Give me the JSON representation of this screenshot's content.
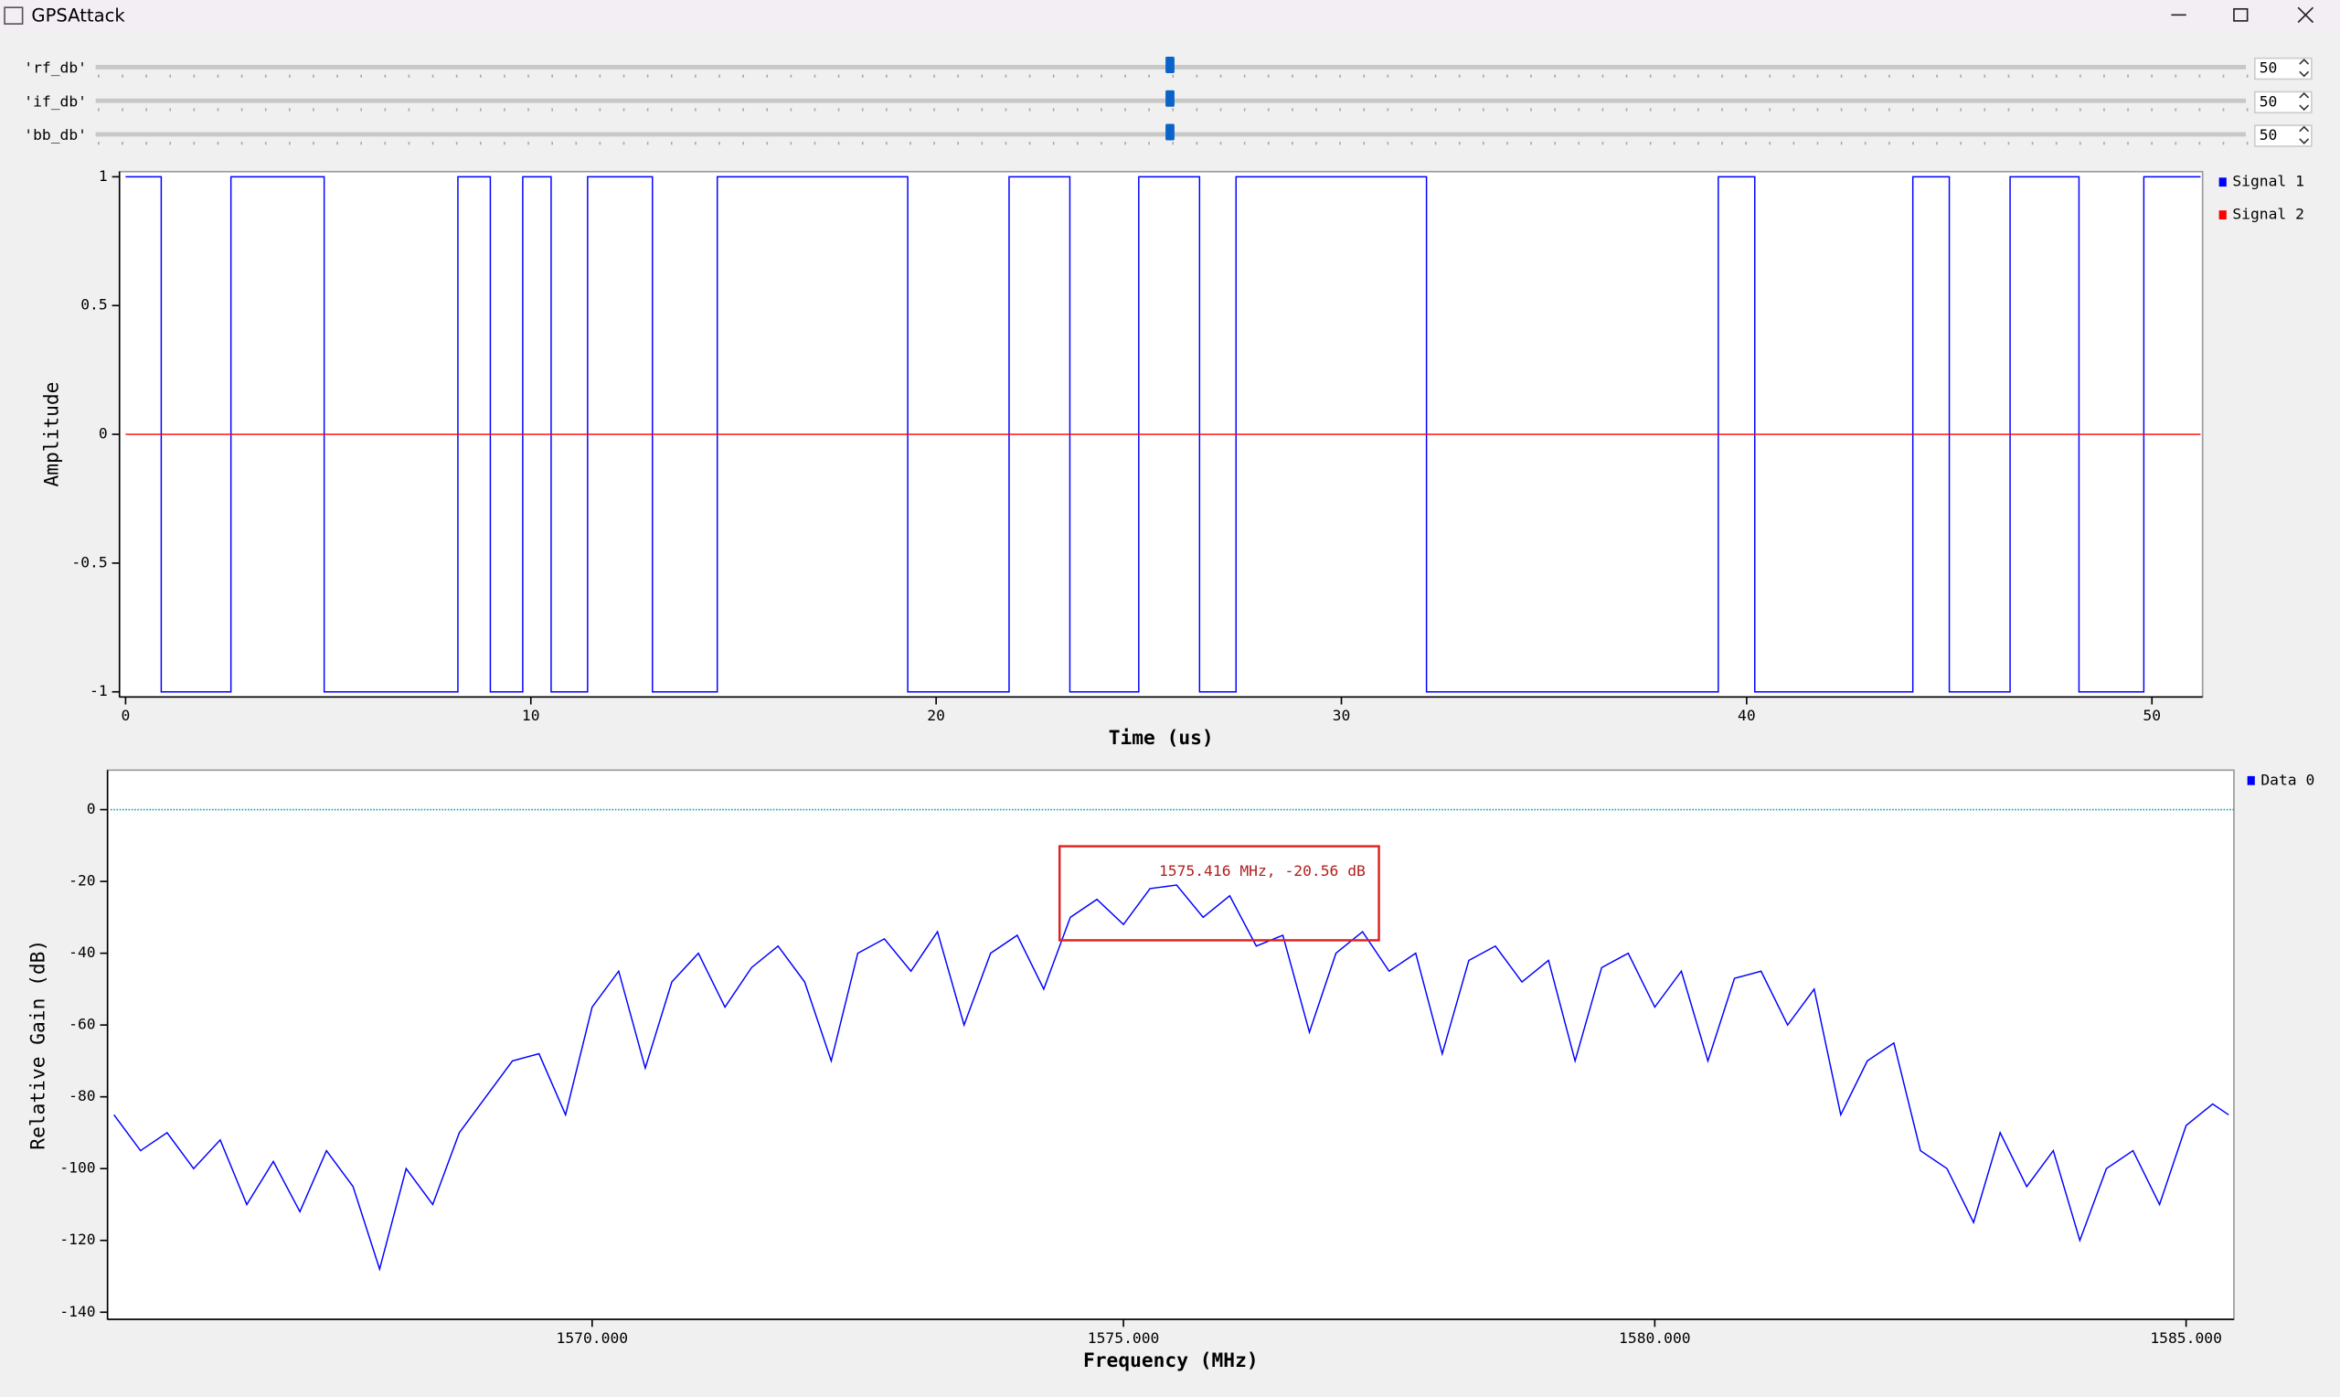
{
  "window": {
    "title": "GPSAttack"
  },
  "controls": [
    {
      "label": "'rf_db'",
      "value": 50
    },
    {
      "label": "'if_db'",
      "value": 50
    },
    {
      "label": "'bb_db'",
      "value": 50
    }
  ],
  "chart_data": [
    {
      "type": "line",
      "xlabel": "Time (us)",
      "ylabel": "Amplitude",
      "xlim": [
        -0.15,
        51.25
      ],
      "ylim": [
        -1.02,
        1.02
      ],
      "xticks": [
        0,
        10,
        20,
        30,
        40,
        50
      ],
      "yticks": [
        -1,
        -0.5,
        0,
        0.5,
        1
      ],
      "legend": "right",
      "series": [
        {
          "name": "Signal 1",
          "color": "#0000ff",
          "x": [
            0,
            0.88,
            0.88,
            2.6,
            2.6,
            4.9,
            4.9,
            8.2,
            8.2,
            9,
            9,
            9.8,
            9.8,
            10.5,
            10.5,
            11.4,
            11.4,
            13,
            13,
            14.6,
            14.6,
            19.3,
            19.3,
            21.8,
            21.8,
            23.3,
            23.3,
            25,
            25,
            26.5,
            26.5,
            27.4,
            27.4,
            32.1,
            32.1,
            39.3,
            39.3,
            40.2,
            40.2,
            44.1,
            44.1,
            45,
            45,
            46.5,
            46.5,
            48.2,
            48.2,
            49.8,
            49.8,
            51.2
          ],
          "values": [
            1,
            1,
            -1,
            -1,
            1,
            1,
            -1,
            -1,
            1,
            1,
            -1,
            -1,
            1,
            1,
            -1,
            -1,
            1,
            1,
            -1,
            -1,
            1,
            1,
            -1,
            -1,
            1,
            1,
            -1,
            -1,
            1,
            1,
            -1,
            -1,
            1,
            1,
            -1,
            -1,
            1,
            1,
            -1,
            -1,
            1,
            1,
            -1,
            -1,
            1,
            1,
            -1,
            -1,
            1,
            1
          ]
        },
        {
          "name": "Signal 2",
          "color": "#ff0000",
          "x": [
            0,
            51.2
          ],
          "values": [
            0,
            0
          ]
        }
      ]
    },
    {
      "type": "line",
      "xlabel": "Frequency (MHz)",
      "ylabel": "Relative Gain (dB)",
      "xlim": [
        1565.44,
        1585.45
      ],
      "ylim": [
        -142,
        11
      ],
      "xticks": [
        {
          "value": 1570,
          "label": "1570.000"
        },
        {
          "value": 1575,
          "label": "1575.000"
        },
        {
          "value": 1580,
          "label": "1580.000"
        },
        {
          "value": 1585,
          "label": "1585.000"
        }
      ],
      "yticks": [
        -140,
        -120,
        -100,
        -80,
        -60,
        -40,
        -20,
        0
      ],
      "legend": "right",
      "reference_level": 0,
      "annotation": "1575.416 MHz, -20.56 dB",
      "series": [
        {
          "name": "Data 0",
          "color": "#0000ff",
          "x": [
            1565.5,
            1565.75,
            1566,
            1566.25,
            1566.5,
            1566.75,
            1567,
            1567.25,
            1567.5,
            1567.75,
            1568,
            1568.25,
            1568.5,
            1568.75,
            1569,
            1569.25,
            1569.5,
            1569.75,
            1570,
            1570.25,
            1570.5,
            1570.75,
            1571,
            1571.25,
            1571.5,
            1571.75,
            1572,
            1572.25,
            1572.5,
            1572.75,
            1573,
            1573.25,
            1573.5,
            1573.75,
            1574,
            1574.25,
            1574.5,
            1574.75,
            1575,
            1575.25,
            1575.5,
            1575.75,
            1576,
            1576.25,
            1576.5,
            1576.75,
            1577,
            1577.25,
            1577.5,
            1577.75,
            1578,
            1578.25,
            1578.5,
            1578.75,
            1579,
            1579.25,
            1579.5,
            1579.75,
            1580,
            1580.25,
            1580.5,
            1580.75,
            1581,
            1581.25,
            1581.5,
            1581.75,
            1582,
            1582.25,
            1582.5,
            1582.75,
            1583,
            1583.25,
            1583.5,
            1583.75,
            1584,
            1584.25,
            1584.5,
            1584.75,
            1585,
            1585.25,
            1585.4
          ],
          "values": [
            -85,
            -95,
            -90,
            -100,
            -92,
            -110,
            -98,
            -112,
            -95,
            -105,
            -128,
            -100,
            -110,
            -90,
            -80,
            -70,
            -68,
            -85,
            -55,
            -45,
            -72,
            -48,
            -40,
            -55,
            -44,
            -38,
            -48,
            -70,
            -40,
            -36,
            -45,
            -34,
            -60,
            -40,
            -35,
            -50,
            -30,
            -25,
            -32,
            -22,
            -21,
            -30,
            -24,
            -38,
            -35,
            -62,
            -40,
            -34,
            -45,
            -40,
            -68,
            -42,
            -38,
            -48,
            -42,
            -70,
            -44,
            -40,
            -55,
            -45,
            -70,
            -47,
            -45,
            -60,
            -50,
            -85,
            -70,
            -65,
            -95,
            -100,
            -115,
            -90,
            -105,
            -95,
            -120,
            -100,
            -95,
            -110,
            -88,
            -82,
            -85
          ]
        }
      ]
    }
  ]
}
